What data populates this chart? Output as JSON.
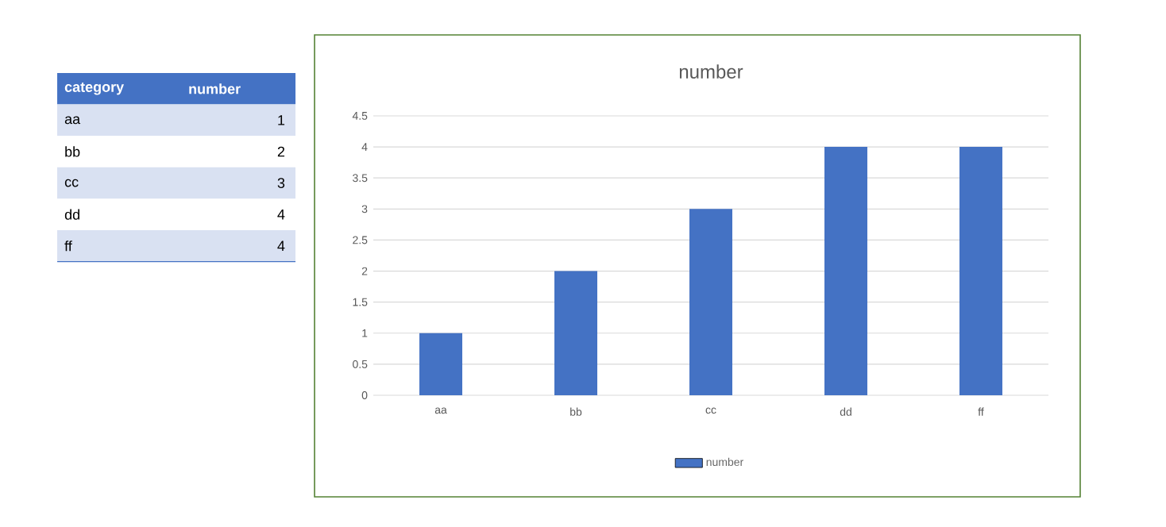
{
  "chart_data": {
    "type": "bar",
    "title": "number",
    "categories": [
      "aa",
      "bb",
      "cc",
      "dd",
      "ff"
    ],
    "series": [
      {
        "name": "number",
        "color": "#4472c4",
        "values": [
          1,
          2,
          3,
          4,
          4
        ]
      }
    ],
    "ylim": [
      0,
      4.5
    ],
    "yticks": [
      0,
      0.5,
      1,
      1.5,
      2,
      2.5,
      3,
      3.5,
      4,
      4.5
    ],
    "grid": "y",
    "legend": "bottom",
    "annotations": [
      "category",
      "1",
      "2",
      "3",
      "4",
      "4"
    ]
  }
}
